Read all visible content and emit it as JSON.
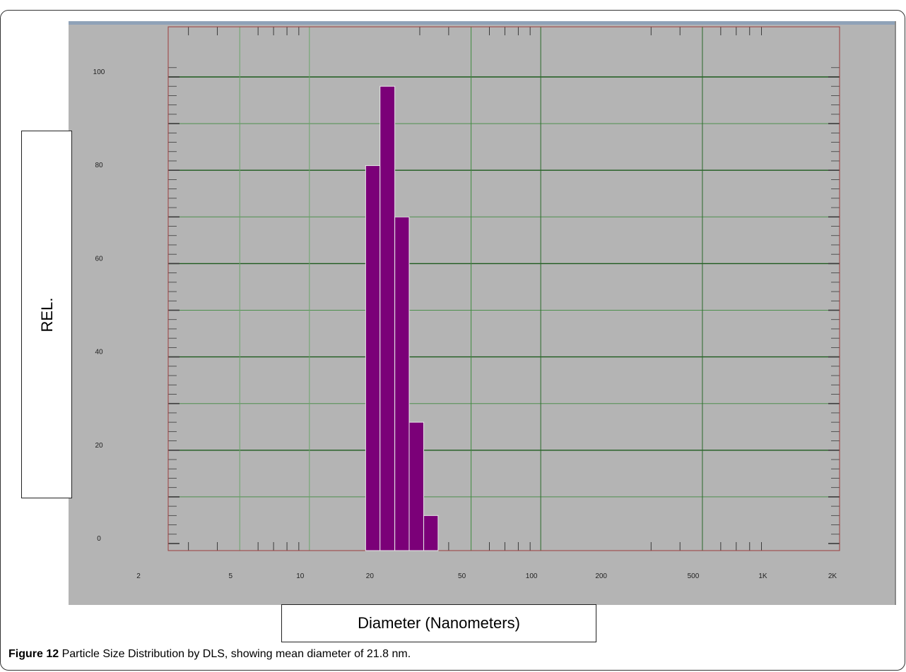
{
  "chart_data": {
    "type": "bar",
    "x_scale": "log",
    "xlim": [
      2,
      2000
    ],
    "ylim": [
      0,
      100
    ],
    "x_tick_labels": [
      "2",
      "5",
      "10",
      "20",
      "50",
      "100",
      "200",
      "500",
      "1K",
      "2K"
    ],
    "x_tick_values": [
      2,
      5,
      10,
      20,
      50,
      100,
      200,
      500,
      1000,
      2000
    ],
    "y_tick_labels": [
      "0",
      "20",
      "40",
      "60",
      "80",
      "100"
    ],
    "y_tick_values": [
      0,
      20,
      40,
      60,
      80,
      100
    ],
    "bars": [
      {
        "x_start": 17.5,
        "x_end": 20.2,
        "value": 81
      },
      {
        "x_start": 20.2,
        "x_end": 23.4,
        "value": 98
      },
      {
        "x_start": 23.4,
        "x_end": 27.0,
        "value": 70
      },
      {
        "x_start": 27.0,
        "x_end": 31.2,
        "value": 26
      },
      {
        "x_start": 31.2,
        "x_end": 36.0,
        "value": 6
      }
    ],
    "xlabel": "Diameter (Nanometers)",
    "ylabel": "REL.",
    "grid": true,
    "bar_color": "#7b0078",
    "background_color": "#b4b4b4"
  },
  "caption": {
    "label": "Figure 12",
    "text": " Particle Size Distribution by DLS, showing mean diameter of 21.8 nm."
  }
}
